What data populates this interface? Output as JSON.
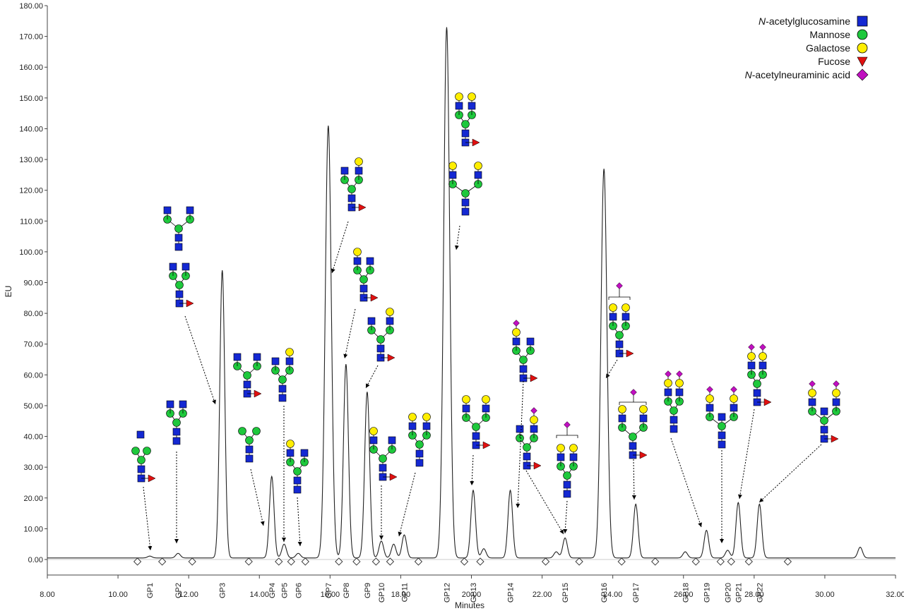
{
  "legend": {
    "items": [
      {
        "name": "N-acetylglucosamine",
        "prefix": "N",
        "rest": "-acetylglucosamine",
        "symbol": "square",
        "color": "#1428d2"
      },
      {
        "name": "Mannose",
        "prefix": "",
        "rest": "Mannose",
        "symbol": "circle",
        "color": "#1ec83c"
      },
      {
        "name": "Galactose",
        "prefix": "",
        "rest": "Galactose",
        "symbol": "circle",
        "color": "#ffee00"
      },
      {
        "name": "Fucose",
        "prefix": "",
        "rest": "Fucose",
        "symbol": "triangle",
        "color": "#e01010"
      },
      {
        "name": "N-acetylneuraminic acid",
        "prefix": "N",
        "rest": "-acetylneuraminic acid",
        "symbol": "diamond",
        "color": "#c010c0"
      }
    ]
  },
  "chart_data": {
    "type": "line",
    "xlabel": "Minutes",
    "ylabel": "EU",
    "xlim": [
      8,
      32
    ],
    "ylim": [
      0,
      180
    ],
    "x_ticks": [
      "8.00",
      "10.00",
      "12.00",
      "14.00",
      "16.00",
      "18.00",
      "20.00",
      "22.00",
      "24.00",
      "26.00",
      "28.00",
      "30.00",
      "32.00"
    ],
    "y_ticks": [
      "0.00",
      "10.00",
      "20.00",
      "30.00",
      "40.00",
      "50.00",
      "60.00",
      "70.00",
      "80.00",
      "90.00",
      "100.00",
      "110.00",
      "120.00",
      "130.00",
      "140.00",
      "150.00",
      "160.00",
      "170.00",
      "180.00"
    ],
    "baseline": 0.5,
    "peaks": [
      {
        "label": "GP1",
        "rt": 10.9,
        "height": 0.6
      },
      {
        "label": "GP2",
        "rt": 11.7,
        "height": 1.5
      },
      {
        "label": "GP3",
        "rt": 12.95,
        "height": 93.5
      },
      {
        "label": "GP4",
        "rt": 14.35,
        "height": 26.5
      },
      {
        "label": "GP5",
        "rt": 14.7,
        "height": 4.5
      },
      {
        "label": "GP6",
        "rt": 15.1,
        "height": 1.5
      },
      {
        "label": "GP7",
        "rt": 15.95,
        "height": 140.5
      },
      {
        "label": "GP8",
        "rt": 16.45,
        "height": 63.0
      },
      {
        "label": "GP9",
        "rt": 17.05,
        "height": 54.0
      },
      {
        "label": "GP10",
        "rt": 17.45,
        "height": 5.5
      },
      {
        "label": "GP11",
        "rt": 18.1,
        "height": 7.5
      },
      {
        "label": "GP12",
        "rt": 19.3,
        "height": 172.5
      },
      {
        "label": "GP13",
        "rt": 20.05,
        "height": 22.0
      },
      {
        "label": "GP14",
        "rt": 21.1,
        "height": 22.0
      },
      {
        "label": "GP15",
        "rt": 22.65,
        "height": 6.5
      },
      {
        "label": "GP16",
        "rt": 23.75,
        "height": 126.5
      },
      {
        "label": "GP17",
        "rt": 24.65,
        "height": 17.5
      },
      {
        "label": "GP18",
        "rt": 26.05,
        "height": 2.0
      },
      {
        "label": "GP19",
        "rt": 26.65,
        "height": 9.0
      },
      {
        "label": "GP20",
        "rt": 27.25,
        "height": 2.5
      },
      {
        "label": "GP21",
        "rt": 27.55,
        "height": 18.0
      },
      {
        "label": "GP22",
        "rt": 28.15,
        "height": 17.5
      }
    ],
    "minor_peaks": [
      {
        "rt": 17.8,
        "height": 4.5
      },
      {
        "rt": 20.35,
        "height": 3.0
      },
      {
        "rt": 22.4,
        "height": 2.0
      },
      {
        "rt": 31.0,
        "height": 3.5
      }
    ],
    "integration_markers": [
      10.55,
      11.25,
      12.1,
      13.7,
      14.55,
      14.9,
      15.3,
      16.25,
      16.75,
      17.3,
      17.7,
      18.5,
      19.8,
      20.25,
      22.1,
      23.05,
      24.25,
      25.2,
      26.35,
      27.05,
      27.35,
      27.85,
      28.95
    ]
  }
}
